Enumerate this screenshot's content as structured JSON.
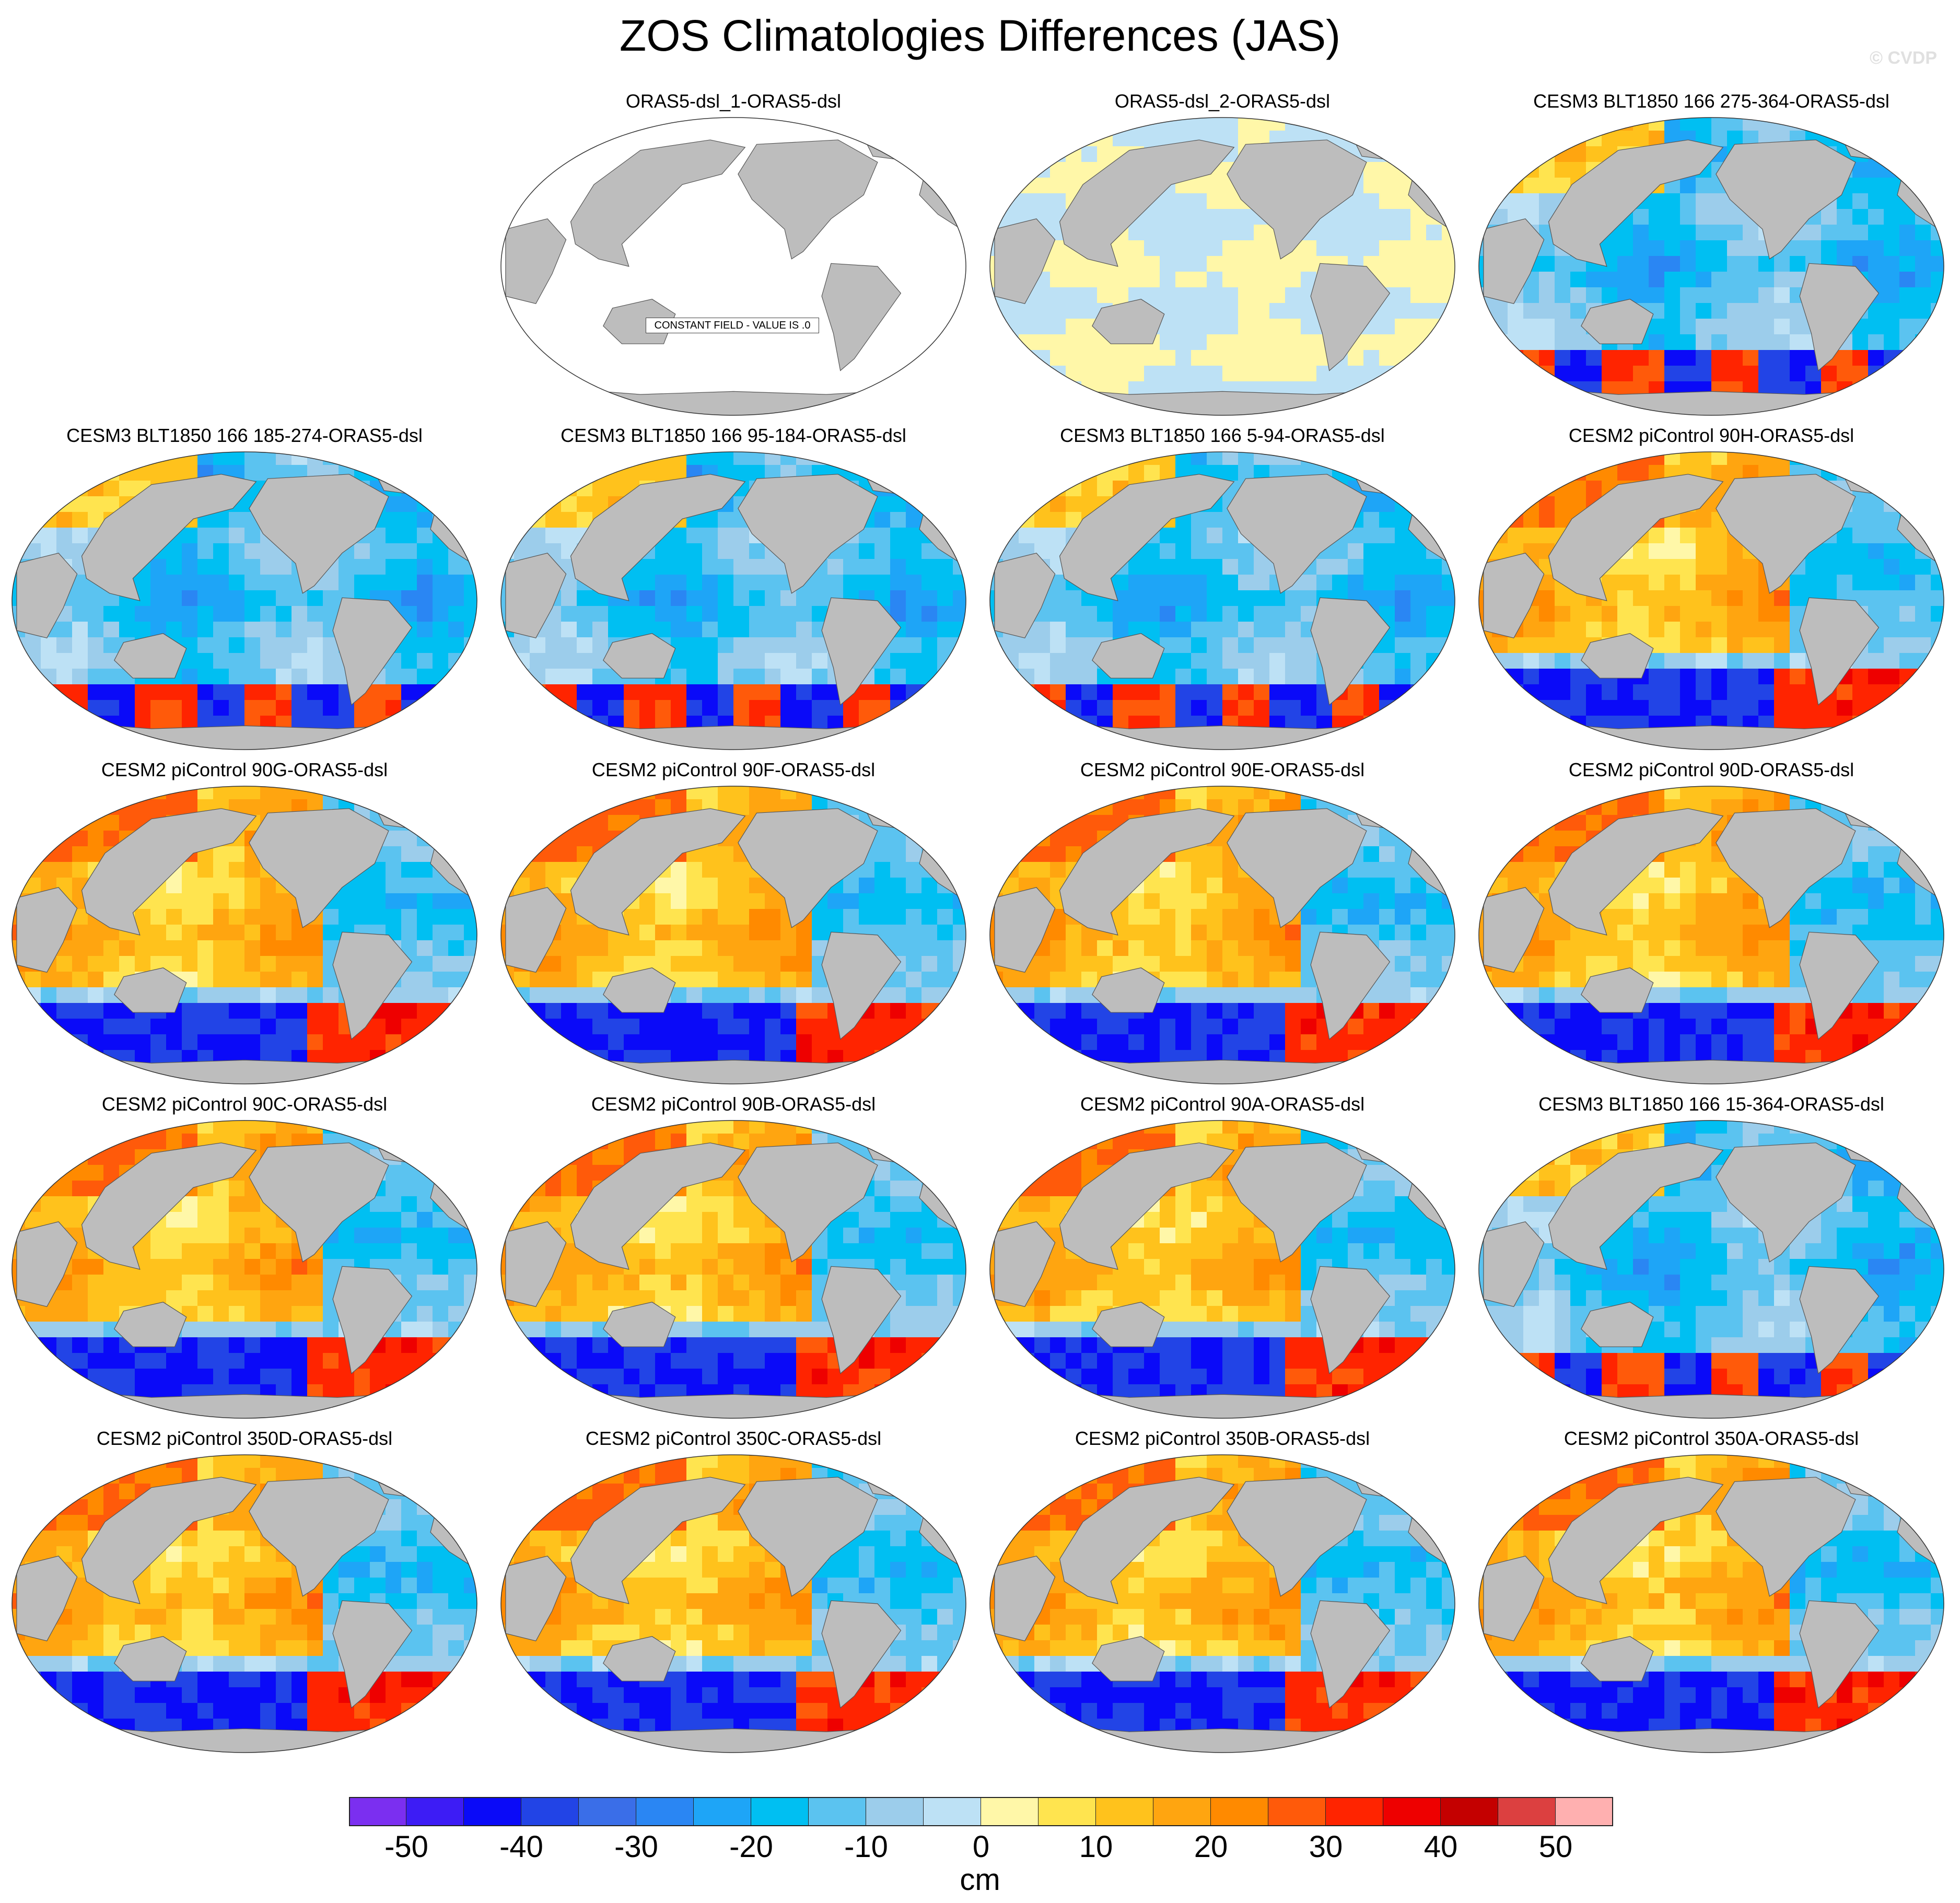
{
  "title": "ZOS Climatologies Differences (JAS)",
  "watermark": "© CVDP",
  "panels": [
    {
      "label": "ORAS5-dsl_1-ORAS5-dsl",
      "pattern": "constant",
      "note": "CONSTANT FIELD - VALUE IS .0"
    },
    {
      "label": "ORAS5-dsl_2-ORAS5-dsl",
      "pattern": "near-zero"
    },
    {
      "label": "CESM3 BLT1850 166 275-364-ORAS5-dsl",
      "pattern": "cesm3"
    },
    {
      "label": "CESM3 BLT1850 166 185-274-ORAS5-dsl",
      "pattern": "cesm3"
    },
    {
      "label": "CESM3 BLT1850 166 95-184-ORAS5-dsl",
      "pattern": "cesm3"
    },
    {
      "label": "CESM3 BLT1850 166 5-94-ORAS5-dsl",
      "pattern": "cesm3"
    },
    {
      "label": "CESM2 piControl 90H-ORAS5-dsl",
      "pattern": "cesm2"
    },
    {
      "label": "CESM2 piControl 90G-ORAS5-dsl",
      "pattern": "cesm2"
    },
    {
      "label": "CESM2 piControl 90F-ORAS5-dsl",
      "pattern": "cesm2"
    },
    {
      "label": "CESM2 piControl 90E-ORAS5-dsl",
      "pattern": "cesm2"
    },
    {
      "label": "CESM2 piControl 90D-ORAS5-dsl",
      "pattern": "cesm2"
    },
    {
      "label": "CESM2 piControl 90C-ORAS5-dsl",
      "pattern": "cesm2"
    },
    {
      "label": "CESM2 piControl 90B-ORAS5-dsl",
      "pattern": "cesm2"
    },
    {
      "label": "CESM2 piControl 90A-ORAS5-dsl",
      "pattern": "cesm2"
    },
    {
      "label": "CESM3 BLT1850 166 15-364-ORAS5-dsl",
      "pattern": "cesm3"
    },
    {
      "label": "CESM2 piControl 350D-ORAS5-dsl",
      "pattern": "cesm2"
    },
    {
      "label": "CESM2 piControl 350C-ORAS5-dsl",
      "pattern": "cesm2"
    },
    {
      "label": "CESM2 piControl 350B-ORAS5-dsl",
      "pattern": "cesm2"
    },
    {
      "label": "CESM2 piControl 350A-ORAS5-dsl",
      "pattern": "cesm2"
    }
  ],
  "colorbar": {
    "units": "cm",
    "colors": [
      "#7b2ff0",
      "#3d1cf5",
      "#0a0af8",
      "#2244e6",
      "#3a6ee8",
      "#2a86f3",
      "#1ea5f7",
      "#00bff2",
      "#5bc3f0",
      "#9ccdeb",
      "#bde1f5",
      "#fff7a8",
      "#ffe44f",
      "#ffc21c",
      "#ffa510",
      "#ff8a00",
      "#ff5a0a",
      "#ff2400",
      "#ee0000",
      "#c40000",
      "#dc4040",
      "#ffb0b0"
    ],
    "ticks": [
      "-50",
      "-40",
      "-30",
      "-20",
      "-10",
      "0",
      "10",
      "20",
      "30",
      "40",
      "50"
    ]
  },
  "colors": {
    "land": "#bdbdbd",
    "ocean_zero": "#ffffff"
  }
}
